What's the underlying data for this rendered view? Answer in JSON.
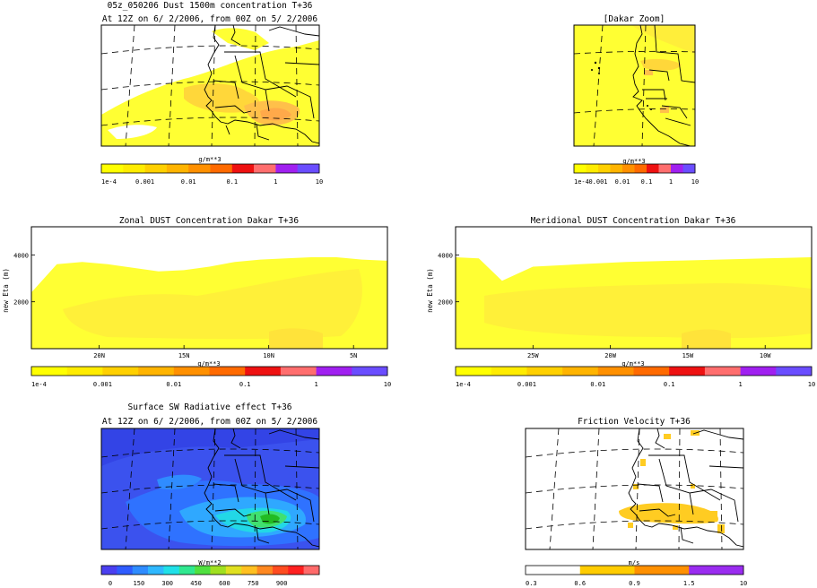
{
  "figure": {
    "main_title": "05z_050206 Dust 1500m concentration T+36",
    "valid_time": "At 12Z on 6/ 2/2006, from 00Z on 5/ 2/2006"
  },
  "chart_data": [
    {
      "id": "dust-map",
      "type": "heatmap",
      "title": "05z_050206 Dust 1500m concentration T+36",
      "subtitle": "At 12Z on 6/ 2/2006, from 00Z on 5/ 2/2006",
      "colorbar": {
        "label": "g/m**3",
        "ticks": [
          "1e-4",
          "0.001",
          "0.01",
          "0.1",
          "1",
          "10"
        ],
        "colors": [
          "#ffff00",
          "#ffec00",
          "#ffd000",
          "#ffb400",
          "#ff9000",
          "#ff6a00",
          "#ee1111",
          "#ff6e6e",
          "#a020f0",
          "#6a4dff"
        ]
      }
    },
    {
      "id": "dakar-zoom",
      "type": "heatmap",
      "title": "[Dakar Zoom]",
      "colorbar": {
        "label": "g/m**3",
        "ticks": [
          "1e-4",
          "0.001",
          "0.01",
          "0.1",
          "1",
          "10"
        ],
        "colors": [
          "#ffff00",
          "#ffec00",
          "#ffd000",
          "#ffb400",
          "#ff9000",
          "#ff6a00",
          "#ee1111",
          "#ff6e6e",
          "#a020f0",
          "#6a4dff"
        ]
      }
    },
    {
      "id": "zonal",
      "type": "area",
      "title": "Zonal DUST Concentration Dakar T+36",
      "ylabel": "new Eta (m)",
      "yticks": [
        2000,
        4000
      ],
      "ylim": [
        0,
        5200
      ],
      "xticks": [
        "20N",
        "15N",
        "10N",
        "5N"
      ],
      "xlim_lat": [
        24,
        3
      ],
      "dust_top_m": {
        "lat": [
          24,
          22.5,
          21,
          19.5,
          18,
          16.5,
          15,
          13.5,
          12,
          10.5,
          9,
          7.5,
          6,
          4.5,
          3
        ],
        "top": [
          2400,
          3600,
          3700,
          3600,
          3450,
          3300,
          3350,
          3500,
          3700,
          3800,
          3850,
          3900,
          3900,
          3800,
          3750
        ]
      },
      "colorbar": {
        "label": "g/m**3",
        "ticks": [
          "1e-4",
          "0.001",
          "0.01",
          "0.1",
          "1",
          "10"
        ],
        "colors": [
          "#ffff00",
          "#ffec00",
          "#ffd000",
          "#ffb400",
          "#ff9000",
          "#ff6a00",
          "#ee1111",
          "#ff6e6e",
          "#a020f0",
          "#6a4dff"
        ]
      }
    },
    {
      "id": "meridional",
      "type": "area",
      "title": "Meridional DUST Concentration Dakar T+36",
      "ylabel": "new Eta (m)",
      "yticks": [
        2000,
        4000
      ],
      "ylim": [
        0,
        5200
      ],
      "xticks": [
        "25W",
        "20W",
        "15W",
        "10W"
      ],
      "xlim_lon": [
        -30,
        -7
      ],
      "dust_top_m": {
        "lon": [
          -30,
          -28.5,
          -27,
          -25,
          -22,
          -19,
          -16,
          -13,
          -10,
          -7
        ],
        "top": [
          3900,
          3850,
          2900,
          3500,
          3600,
          3700,
          3750,
          3800,
          3850,
          3900
        ]
      },
      "colorbar": {
        "label": "g/m**3",
        "ticks": [
          "1e-4",
          "0.001",
          "0.01",
          "0.1",
          "1",
          "10"
        ],
        "colors": [
          "#ffff00",
          "#ffec00",
          "#ffd000",
          "#ffb400",
          "#ff9000",
          "#ff6a00",
          "#ee1111",
          "#ff6e6e",
          "#a020f0",
          "#6a4dff"
        ]
      }
    },
    {
      "id": "sw-map",
      "type": "heatmap",
      "title": "Surface SW Radiative effect T+36",
      "subtitle": "At 12Z on 6/ 2/2006, from 00Z on 5/ 2/2006",
      "colorbar": {
        "label": "W/m**2",
        "ticks": [
          "0",
          "150",
          "300",
          "450",
          "600",
          "750",
          "900"
        ],
        "colors": [
          "#4a3ff0",
          "#2f5cff",
          "#2f8cff",
          "#2fb8ff",
          "#20e0e8",
          "#30e890",
          "#50e040",
          "#a0e020",
          "#e0e020",
          "#ffc020",
          "#ff8820",
          "#ff4c20",
          "#ff2020",
          "#ff6a6a"
        ]
      }
    },
    {
      "id": "friction",
      "type": "heatmap",
      "title": "Friction Velocity T+36",
      "colorbar": {
        "label": "m/s",
        "ticks": [
          "0.3",
          "0.6",
          "0.9",
          "1.5",
          "10"
        ],
        "colors": [
          "#ffffff",
          "#ffcc00",
          "#ff9000",
          "#9a2cf0"
        ]
      }
    }
  ]
}
